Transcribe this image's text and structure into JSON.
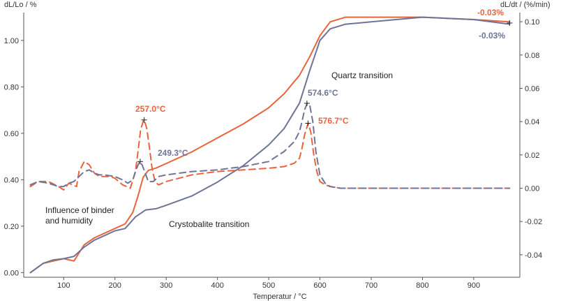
{
  "colors": {
    "orange": "#e8643c",
    "blue": "#6e7497",
    "axis": "#555555",
    "text": "#222222",
    "marker": "#222222"
  },
  "chart_data": {
    "type": "line",
    "left_axis": {
      "label": "dL/Lo / %",
      "range": [
        -0.02,
        1.12
      ],
      "ticks": [
        0.0,
        0.2,
        0.4,
        0.6,
        0.8,
        1.0
      ],
      "tick_labels": [
        "0.00",
        "0.20",
        "0.40",
        "0.60",
        "0.80",
        "1.00"
      ]
    },
    "right_axis": {
      "label": "dL/dt / (%/min)",
      "range": [
        -0.0535,
        0.1055
      ],
      "ticks": [
        -0.04,
        -0.02,
        0.0,
        0.02,
        0.04,
        0.06,
        0.08,
        0.1
      ],
      "tick_labels": [
        "-0.04",
        "-0.02",
        "0.00",
        "0.02",
        "0.04",
        "0.06",
        "0.08",
        "0.10"
      ]
    },
    "x_axis": {
      "label": "Temperatur / °C",
      "range": [
        22,
        990
      ],
      "ticks": [
        100,
        200,
        300,
        400,
        500,
        600,
        700,
        800,
        900
      ],
      "tick_labels": [
        "100",
        "200",
        "300",
        "400",
        "500",
        "600",
        "700",
        "800",
        "900"
      ]
    },
    "grid": false,
    "series": [
      {
        "axis": "left",
        "style": "solid",
        "color": "orange",
        "x": [
          35,
          60,
          80,
          100,
          120,
          140,
          160,
          180,
          200,
          220,
          235,
          245,
          255,
          265,
          280,
          300,
          350,
          400,
          450,
          500,
          530,
          560,
          580,
          600,
          620,
          650,
          700,
          800,
          900,
          970
        ],
        "y": [
          0.0,
          0.04,
          0.05,
          0.06,
          0.05,
          0.12,
          0.15,
          0.17,
          0.19,
          0.21,
          0.26,
          0.33,
          0.41,
          0.44,
          0.45,
          0.47,
          0.52,
          0.58,
          0.64,
          0.71,
          0.77,
          0.85,
          0.93,
          1.02,
          1.08,
          1.1,
          1.1,
          1.1,
          1.09,
          1.08
        ]
      },
      {
        "axis": "left",
        "style": "solid",
        "color": "blue",
        "x": [
          35,
          60,
          80,
          100,
          120,
          140,
          160,
          180,
          200,
          220,
          240,
          260,
          280,
          300,
          350,
          400,
          450,
          500,
          530,
          560,
          580,
          600,
          620,
          650,
          700,
          800,
          900,
          970
        ],
        "y": [
          0.0,
          0.04,
          0.055,
          0.06,
          0.07,
          0.11,
          0.14,
          0.16,
          0.18,
          0.19,
          0.24,
          0.27,
          0.275,
          0.29,
          0.33,
          0.39,
          0.46,
          0.55,
          0.62,
          0.73,
          0.87,
          1.0,
          1.05,
          1.07,
          1.08,
          1.1,
          1.09,
          1.07
        ]
      },
      {
        "axis": "right",
        "style": "dashed",
        "color": "orange",
        "x": [
          35,
          50,
          70,
          90,
          100,
          110,
          125,
          130,
          140,
          150,
          160,
          170,
          180,
          190,
          200,
          215,
          230,
          240,
          245,
          250,
          255,
          257,
          262,
          267,
          272,
          278,
          285,
          300,
          350,
          400,
          450,
          500,
          530,
          550,
          560,
          565,
          570,
          577,
          582,
          588,
          594,
          600,
          610,
          620,
          640,
          660,
          700,
          800,
          900,
          970
        ],
        "y": [
          0.001,
          0.004,
          0.004,
          0.001,
          -0.001,
          0.003,
          0.001,
          0.01,
          0.016,
          0.014,
          0.009,
          0.007,
          0.007,
          0.007,
          0.006,
          0.002,
          0.0,
          0.01,
          0.022,
          0.035,
          0.04,
          0.041,
          0.036,
          0.025,
          0.013,
          0.004,
          0.002,
          0.004,
          0.008,
          0.01,
          0.011,
          0.012,
          0.013,
          0.015,
          0.018,
          0.024,
          0.032,
          0.039,
          0.034,
          0.02,
          0.01,
          0.004,
          0.002,
          0.001,
          0.0,
          0.0,
          0.0,
          0.0,
          0.0,
          0.0
        ]
      },
      {
        "axis": "right",
        "style": "dashed",
        "color": "blue",
        "x": [
          35,
          50,
          70,
          90,
          100,
          110,
          120,
          130,
          140,
          150,
          160,
          170,
          180,
          200,
          215,
          225,
          235,
          240,
          245,
          249,
          253,
          258,
          265,
          275,
          285,
          300,
          350,
          400,
          450,
          500,
          530,
          550,
          560,
          565,
          570,
          575,
          580,
          586,
          592,
          600,
          610,
          620,
          640,
          660,
          700,
          800,
          900,
          970
        ],
        "y": [
          0.002,
          0.004,
          0.003,
          0.001,
          0.001,
          0.003,
          0.004,
          0.007,
          0.01,
          0.011,
          0.009,
          0.008,
          0.008,
          0.007,
          0.005,
          0.003,
          0.005,
          0.01,
          0.014,
          0.016,
          0.014,
          0.01,
          0.004,
          0.004,
          0.007,
          0.008,
          0.01,
          0.011,
          0.013,
          0.016,
          0.022,
          0.028,
          0.034,
          0.04,
          0.047,
          0.051,
          0.05,
          0.04,
          0.022,
          0.008,
          0.003,
          0.001,
          0.0,
          0.0,
          0.0,
          0.0,
          0.0,
          0.0
        ]
      }
    ],
    "peak_markers": [
      {
        "axis": "right",
        "x": 257.0,
        "y": 0.041,
        "label": "257.0°C",
        "color": "orange"
      },
      {
        "axis": "right",
        "x": 249.3,
        "y": 0.016,
        "label": "249.3°C",
        "color": "blue"
      },
      {
        "axis": "right",
        "x": 574.6,
        "y": 0.051,
        "label": "574.6°C",
        "color": "blue"
      },
      {
        "axis": "right",
        "x": 576.7,
        "y": 0.039,
        "label": "576.7°C",
        "color": "orange"
      },
      {
        "axis": "left",
        "x": 970,
        "y": 1.075,
        "label": "",
        "color": "blue"
      }
    ],
    "endpoint_labels": [
      {
        "label": "-0.03%",
        "color": "orange"
      },
      {
        "label": "-0.03%",
        "color": "blue"
      }
    ],
    "annotations": [
      "Quartz transition",
      "Influence of binder",
      "and humidity",
      "Crystobalite transition"
    ]
  }
}
